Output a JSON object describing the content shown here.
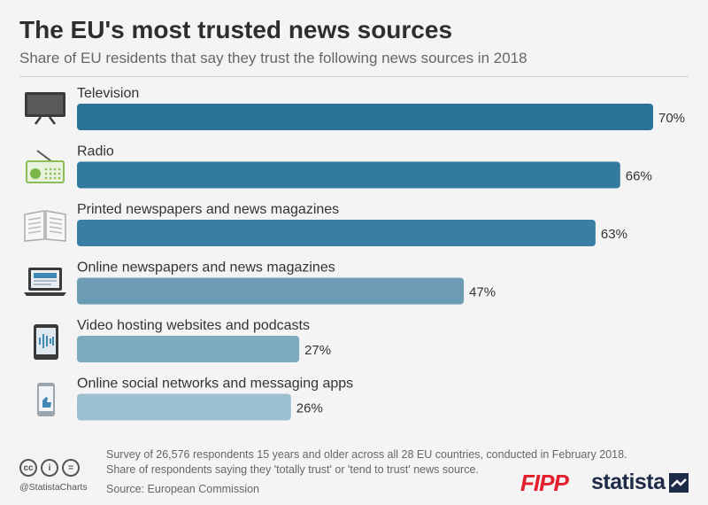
{
  "chart_data": {
    "type": "bar",
    "orientation": "horizontal",
    "title": "The EU's most trusted news sources",
    "subtitle": "Share of EU residents that say they trust the following news sources in 2018",
    "categories": [
      "Television",
      "Radio",
      "Printed newspapers and news magazines",
      "Online newspapers and news magazines",
      "Video hosting websites and podcasts",
      "Online social networks and messaging apps"
    ],
    "values": [
      70,
      66,
      63,
      47,
      27,
      26
    ],
    "value_labels": [
      "70%",
      "66%",
      "63%",
      "47%",
      "27%",
      "26%"
    ],
    "icons": [
      "television-icon",
      "radio-icon",
      "newspaper-icon",
      "laptop-news-icon",
      "tablet-video-icon",
      "smartphone-like-icon"
    ],
    "bar_colors": [
      "#2c7399",
      "#337a9f",
      "#3a7fa3",
      "#6b9cb4",
      "#7eaabe",
      "#9cc0d1"
    ],
    "xlim": [
      0,
      70
    ]
  },
  "footer": {
    "note_line1": "Survey of 26,576 respondents 15 years and older across all 28 EU countries, conducted in February 2018.",
    "note_line2": "Share of respondents saying they 'totally trust' or 'tend to trust' news source.",
    "source": "Source: European Commission",
    "handle": "@StatistaCharts",
    "cc_symbols": [
      "cc",
      "i",
      "="
    ],
    "logo_fipp": "FIPP",
    "logo_statista": "statista"
  }
}
